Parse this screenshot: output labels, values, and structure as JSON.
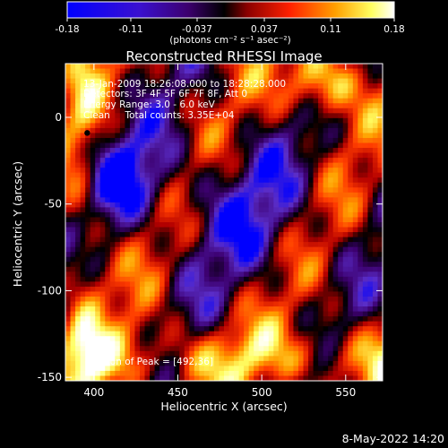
{
  "colorbar": {
    "tick_labels": [
      "-0.18",
      "-0.11",
      "-0.037",
      "0.037",
      "0.11",
      "0.18"
    ],
    "tick_values": [
      -0.18,
      -0.11,
      -0.037,
      0.037,
      0.11,
      0.18
    ],
    "range": [
      -0.18,
      0.18
    ],
    "unit_label": "(photons cm⁻² s⁻¹ asec⁻²)"
  },
  "chart_data": {
    "type": "heatmap",
    "title": "Reconstructed RHESSI Image",
    "xlabel": "Heliocentric X (arcsec)",
    "ylabel": "Heliocentric Y (arcsec)",
    "xlim": [
      383,
      572
    ],
    "ylim": [
      -152,
      31
    ],
    "xticks": [
      400,
      450,
      500,
      550
    ],
    "yticks": [
      0,
      -50,
      -100,
      -150
    ],
    "xtick_labels": [
      "400",
      "450",
      "500",
      "550"
    ],
    "ytick_labels": [
      "0",
      "-50",
      "-100",
      "-150"
    ],
    "info_lines": [
      "13-Jan-2009 18:26:08.000 to 18:28:28.000",
      "Detectors: 3F 4F 5F 6F 7F 8F, Att 0",
      "Energy Range: 3.0 - 6.0 keV",
      "Clean     Total counts: 3.35E+04"
    ],
    "peak_label": "Position of Peak = [492,36]",
    "peak_position": [
      492,
      36
    ],
    "marker_position": [
      396,
      -9
    ],
    "colormap": [
      "#0000ff",
      "#5a2dc8",
      "#3c006e",
      "#000000",
      "#b40000",
      "#ff3c00",
      "#ffa000",
      "#ffff64",
      "#ffffff"
    ]
  },
  "footer": {
    "date": "8-May-2022 14:20"
  }
}
